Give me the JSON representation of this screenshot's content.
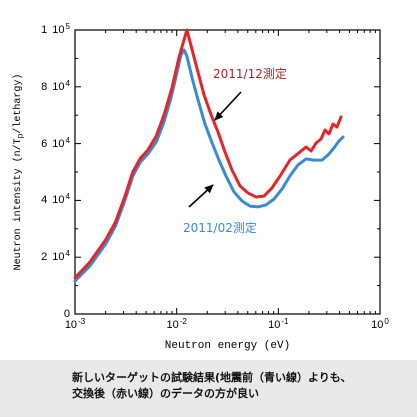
{
  "chart_data": {
    "type": "line",
    "xlabel": "Neutron energy (eV)",
    "ylabel": {
      "text": "Neutron intensity (n/T",
      "subscript": "p",
      "tail": "/lethargy)"
    },
    "x_scale": "log",
    "y_scale": "linear",
    "xlim": [
      0.001,
      1
    ],
    "ylim": [
      0,
      100000
    ],
    "grid": false,
    "legend": "none",
    "x_ticks": [
      {
        "value": 0.001,
        "base": "10",
        "exp": "-3"
      },
      {
        "value": 0.01,
        "base": "10",
        "exp": "-2"
      },
      {
        "value": 0.1,
        "base": "10",
        "exp": "-1"
      },
      {
        "value": 1,
        "base": "10",
        "exp": "0"
      }
    ],
    "y_ticks": [
      {
        "value": 100000,
        "mantissa": "1",
        "base": "10",
        "exp": "5"
      },
      {
        "value": 80000,
        "mantissa": "8",
        "base": "10",
        "exp": "4"
      },
      {
        "value": 60000,
        "mantissa": "6",
        "base": "10",
        "exp": "4"
      },
      {
        "value": 40000,
        "mantissa": "4",
        "base": "10",
        "exp": "4"
      },
      {
        "value": 20000,
        "mantissa": "2",
        "base": "10",
        "exp": "4"
      },
      {
        "value": 0,
        "mantissa": "0"
      }
    ],
    "series": [
      {
        "name": "2011/12測定",
        "color": "#e4252a",
        "label_color": "#a8262b",
        "points": [
          [
            0.001,
            12700
          ],
          [
            0.0014,
            18300
          ],
          [
            0.002,
            26100
          ],
          [
            0.0025,
            32400
          ],
          [
            0.0031,
            41500
          ],
          [
            0.0037,
            50000
          ],
          [
            0.0044,
            54900
          ],
          [
            0.0052,
            57700
          ],
          [
            0.0063,
            62700
          ],
          [
            0.0075,
            70100
          ],
          [
            0.009,
            79600
          ],
          [
            0.0105,
            90100
          ],
          [
            0.0118,
            96500
          ],
          [
            0.0126,
            100000
          ],
          [
            0.0138,
            94700
          ],
          [
            0.0158,
            86600
          ],
          [
            0.0186,
            77100
          ],
          [
            0.0218,
            70100
          ],
          [
            0.0255,
            64100
          ],
          [
            0.0299,
            57000
          ],
          [
            0.035,
            50700
          ],
          [
            0.042,
            45100
          ],
          [
            0.0503,
            42600
          ],
          [
            0.0603,
            41200
          ],
          [
            0.0723,
            41500
          ],
          [
            0.0866,
            44400
          ],
          [
            0.104,
            48600
          ],
          [
            0.13,
            54200
          ],
          [
            0.163,
            57000
          ],
          [
            0.187,
            58800
          ],
          [
            0.21,
            57400
          ],
          [
            0.235,
            60200
          ],
          [
            0.263,
            61600
          ],
          [
            0.288,
            64800
          ],
          [
            0.315,
            63400
          ],
          [
            0.345,
            66900
          ],
          [
            0.378,
            65800
          ],
          [
            0.413,
            69400
          ]
        ]
      },
      {
        "name": "2011/02測定",
        "color": "#3a8ad6",
        "label_color": "#3a8ad6",
        "points": [
          [
            0.001,
            11600
          ],
          [
            0.0014,
            16900
          ],
          [
            0.002,
            24600
          ],
          [
            0.0025,
            31000
          ],
          [
            0.0031,
            40100
          ],
          [
            0.0037,
            48600
          ],
          [
            0.0044,
            53500
          ],
          [
            0.0052,
            56300
          ],
          [
            0.0063,
            60600
          ],
          [
            0.0075,
            67600
          ],
          [
            0.0088,
            76100
          ],
          [
            0.0101,
            85200
          ],
          [
            0.011,
            91200
          ],
          [
            0.0118,
            93000
          ],
          [
            0.0126,
            90800
          ],
          [
            0.0142,
            83100
          ],
          [
            0.0162,
            75400
          ],
          [
            0.019,
            66900
          ],
          [
            0.0223,
            60200
          ],
          [
            0.0261,
            54200
          ],
          [
            0.0306,
            48600
          ],
          [
            0.0366,
            43000
          ],
          [
            0.0439,
            39800
          ],
          [
            0.0527,
            38000
          ],
          [
            0.0631,
            37700
          ],
          [
            0.0756,
            38400
          ],
          [
            0.0907,
            40500
          ],
          [
            0.109,
            44000
          ],
          [
            0.13,
            48600
          ],
          [
            0.156,
            52500
          ],
          [
            0.187,
            54600
          ],
          [
            0.224,
            54200
          ],
          [
            0.269,
            54200
          ],
          [
            0.308,
            56000
          ],
          [
            0.353,
            58500
          ],
          [
            0.395,
            60900
          ],
          [
            0.433,
            62300
          ]
        ]
      }
    ]
  },
  "caption": {
    "line1": "新しいターゲットの試験結果(地震前（青い線）よりも、",
    "line2": "交換後（赤い線）のデータの方が良い"
  }
}
